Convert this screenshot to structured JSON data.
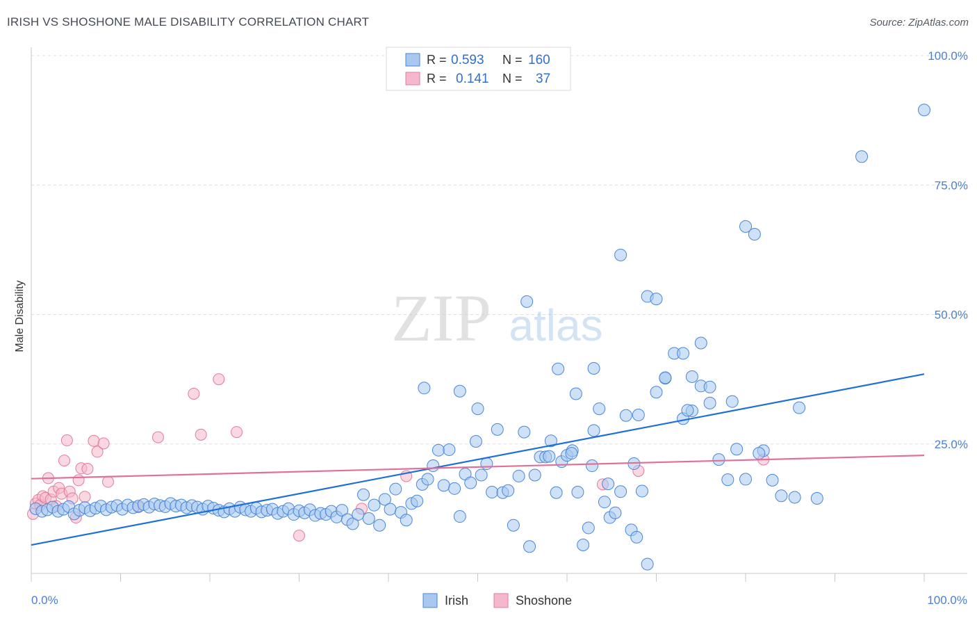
{
  "header": {
    "title": "IRISH VS SHOSHONE MALE DISABILITY CORRELATION CHART",
    "source": "Source: ZipAtlas.com"
  },
  "watermark": {
    "zip": "ZIP",
    "atlas": "atlas"
  },
  "legend_box": {
    "rows": [
      {
        "r_label": "R =",
        "r_value": "0.593",
        "n_label": "N =",
        "n_value": "160"
      },
      {
        "r_label": "R =",
        "r_value": "0.141",
        "n_label": "N =",
        "n_value": "37"
      }
    ]
  },
  "chart_data": {
    "type": "scatter",
    "title": "IRISH VS SHOSHONE MALE DISABILITY CORRELATION CHART",
    "xlabel": "",
    "ylabel": "Male Disability",
    "xlim": [
      0,
      100
    ],
    "ylim": [
      0,
      100
    ],
    "x_tick_labels": [
      "0.0%",
      "100.0%"
    ],
    "y_tick_labels": [
      "25.0%",
      "50.0%",
      "75.0%",
      "100.0%"
    ],
    "y_ticks": [
      25,
      50,
      75,
      100
    ],
    "grid": true,
    "legend_position": "bottom-center",
    "colors": {
      "irish_fill": "#a8c8f0",
      "irish_stroke": "#4a86d8",
      "irish_line": "#1e6fd9",
      "shoshone_fill": "#f5b8cb",
      "shoshone_stroke": "#e27a9c",
      "shoshone_line": "#e0709a",
      "axis_text": "#4a7fd4"
    },
    "series": [
      {
        "name": "Irish",
        "r": 0.593,
        "n": 160,
        "trend": {
          "x": [
            0,
            100
          ],
          "y": [
            5.5,
            38.5
          ]
        },
        "points": [
          [
            0.5,
            12.5
          ],
          [
            1.2,
            12.0
          ],
          [
            1.8,
            12.3
          ],
          [
            2.4,
            12.8
          ],
          [
            3.0,
            12.0
          ],
          [
            3.6,
            12.4
          ],
          [
            4.2,
            12.9
          ],
          [
            4.8,
            11.5
          ],
          [
            5.4,
            12.2
          ],
          [
            6.0,
            12.7
          ],
          [
            6.6,
            12.1
          ],
          [
            7.2,
            12.6
          ],
          [
            7.8,
            13.0
          ],
          [
            8.4,
            12.3
          ],
          [
            9.0,
            12.8
          ],
          [
            9.6,
            13.1
          ],
          [
            10.2,
            12.4
          ],
          [
            10.8,
            13.2
          ],
          [
            11.4,
            12.7
          ],
          [
            12.0,
            13.0
          ],
          [
            12.6,
            13.3
          ],
          [
            13.2,
            12.8
          ],
          [
            13.8,
            13.4
          ],
          [
            14.4,
            13.1
          ],
          [
            15.0,
            12.9
          ],
          [
            15.6,
            13.5
          ],
          [
            16.2,
            13.0
          ],
          [
            16.8,
            13.2
          ],
          [
            17.4,
            12.7
          ],
          [
            18.0,
            13.1
          ],
          [
            18.6,
            12.8
          ],
          [
            19.2,
            12.4
          ],
          [
            19.8,
            13.0
          ],
          [
            20.4,
            12.6
          ],
          [
            21.0,
            12.2
          ],
          [
            21.6,
            11.9
          ],
          [
            22.2,
            12.5
          ],
          [
            22.8,
            12.0
          ],
          [
            23.4,
            12.8
          ],
          [
            24.0,
            12.3
          ],
          [
            24.6,
            12.0
          ],
          [
            25.2,
            12.6
          ],
          [
            25.8,
            11.9
          ],
          [
            26.4,
            12.2
          ],
          [
            27.0,
            12.4
          ],
          [
            27.6,
            11.6
          ],
          [
            28.2,
            12.0
          ],
          [
            28.8,
            12.5
          ],
          [
            29.4,
            11.4
          ],
          [
            30.0,
            12.1
          ],
          [
            30.6,
            11.7
          ],
          [
            31.2,
            12.3
          ],
          [
            31.8,
            11.2
          ],
          [
            32.4,
            11.6
          ],
          [
            33.0,
            11.4
          ],
          [
            33.6,
            12.0
          ],
          [
            34.2,
            10.9
          ],
          [
            34.8,
            12.2
          ],
          [
            35.4,
            10.4
          ],
          [
            36.0,
            9.6
          ],
          [
            36.6,
            11.4
          ],
          [
            37.2,
            15.2
          ],
          [
            37.8,
            10.6
          ],
          [
            38.4,
            13.2
          ],
          [
            39.0,
            9.3
          ],
          [
            39.6,
            14.3
          ],
          [
            40.2,
            12.4
          ],
          [
            40.8,
            16.3
          ],
          [
            41.4,
            11.8
          ],
          [
            42.0,
            10.3
          ],
          [
            42.6,
            13.5
          ],
          [
            43.2,
            14.0
          ],
          [
            43.8,
            17.2
          ],
          [
            44.4,
            18.2
          ],
          [
            45.0,
            20.8
          ],
          [
            45.6,
            23.8
          ],
          [
            46.2,
            17.0
          ],
          [
            46.8,
            23.9
          ],
          [
            47.4,
            16.4
          ],
          [
            48.0,
            11.0
          ],
          [
            48.6,
            19.2
          ],
          [
            49.2,
            17.5
          ],
          [
            49.8,
            25.5
          ],
          [
            50.4,
            19.0
          ],
          [
            51.0,
            21.2
          ],
          [
            51.6,
            15.7
          ],
          [
            52.2,
            27.8
          ],
          [
            52.8,
            15.6
          ],
          [
            53.4,
            16.0
          ],
          [
            54.0,
            9.3
          ],
          [
            54.6,
            18.8
          ],
          [
            55.2,
            27.3
          ],
          [
            55.8,
            5.2
          ],
          [
            56.4,
            19.0
          ],
          [
            57.0,
            22.5
          ],
          [
            57.6,
            22.5
          ],
          [
            58.2,
            25.6
          ],
          [
            58.8,
            15.6
          ],
          [
            59.4,
            21.6
          ],
          [
            60.0,
            22.8
          ],
          [
            60.6,
            23.7
          ],
          [
            61.2,
            15.7
          ],
          [
            61.8,
            5.5
          ],
          [
            62.4,
            8.8
          ],
          [
            63.0,
            27.6
          ],
          [
            63.6,
            31.8
          ],
          [
            64.2,
            13.8
          ],
          [
            64.8,
            10.8
          ],
          [
            65.4,
            11.7
          ],
          [
            66.0,
            15.8
          ],
          [
            66.6,
            30.5
          ],
          [
            67.2,
            8.4
          ],
          [
            67.8,
            7.0
          ],
          [
            68.4,
            15.9
          ],
          [
            69.0,
            1.8
          ],
          [
            70.0,
            35.0
          ],
          [
            71.0,
            37.7
          ],
          [
            72.0,
            42.5
          ],
          [
            73.0,
            29.9
          ],
          [
            74.0,
            31.4
          ],
          [
            75.0,
            36.2
          ],
          [
            76.0,
            32.9
          ],
          [
            77.0,
            22.0
          ],
          [
            78.0,
            18.1
          ],
          [
            79.0,
            24.0
          ],
          [
            80.0,
            18.2
          ],
          [
            82.0,
            23.7
          ],
          [
            84.0,
            15.0
          ],
          [
            86.0,
            32.0
          ],
          [
            88.0,
            14.5
          ],
          [
            55.5,
            52.5
          ],
          [
            66.0,
            61.5
          ],
          [
            69.0,
            53.5
          ],
          [
            70.0,
            53.0
          ],
          [
            73.0,
            42.5
          ],
          [
            74.0,
            38.0
          ],
          [
            75.0,
            44.5
          ],
          [
            80.0,
            67.0
          ],
          [
            81.0,
            65.5
          ],
          [
            93.0,
            80.5
          ],
          [
            100.0,
            89.5
          ],
          [
            44.0,
            35.8
          ],
          [
            48.0,
            35.2
          ],
          [
            50.0,
            31.8
          ],
          [
            59.0,
            39.5
          ],
          [
            63.0,
            39.6
          ],
          [
            61.0,
            34.7
          ],
          [
            68.0,
            30.6
          ],
          [
            71.0,
            37.8
          ],
          [
            73.5,
            31.5
          ],
          [
            76.0,
            36.0
          ],
          [
            78.5,
            33.2
          ],
          [
            81.5,
            23.2
          ],
          [
            83.0,
            18.0
          ],
          [
            85.5,
            14.7
          ],
          [
            60.5,
            23.2
          ],
          [
            58.0,
            22.6
          ],
          [
            62.8,
            20.8
          ],
          [
            64.6,
            17.3
          ],
          [
            67.5,
            21.2
          ]
        ]
      },
      {
        "name": "Shoshone",
        "r": 0.141,
        "n": 37,
        "trend": {
          "x": [
            0,
            100
          ],
          "y": [
            18.3,
            22.8
          ]
        },
        "points": [
          [
            0.2,
            11.5
          ],
          [
            0.5,
            13.5
          ],
          [
            0.8,
            14.2
          ],
          [
            1.0,
            13.2
          ],
          [
            1.3,
            14.9
          ],
          [
            1.6,
            14.6
          ],
          [
            1.9,
            18.4
          ],
          [
            2.2,
            14.3
          ],
          [
            2.5,
            15.8
          ],
          [
            2.8,
            13.0
          ],
          [
            3.1,
            16.5
          ],
          [
            3.4,
            15.4
          ],
          [
            3.7,
            21.8
          ],
          [
            4.0,
            25.7
          ],
          [
            4.3,
            15.8
          ],
          [
            4.6,
            14.5
          ],
          [
            5.0,
            10.8
          ],
          [
            5.3,
            18.0
          ],
          [
            5.6,
            20.3
          ],
          [
            6.0,
            14.8
          ],
          [
            6.3,
            20.2
          ],
          [
            7.0,
            25.6
          ],
          [
            7.4,
            23.5
          ],
          [
            8.1,
            25.1
          ],
          [
            8.6,
            17.7
          ],
          [
            12.0,
            12.8
          ],
          [
            14.2,
            26.3
          ],
          [
            18.2,
            34.7
          ],
          [
            19.0,
            26.8
          ],
          [
            21.0,
            37.5
          ],
          [
            23.0,
            27.3
          ],
          [
            30.0,
            7.3
          ],
          [
            37.0,
            12.5
          ],
          [
            42.0,
            18.8
          ],
          [
            64.0,
            17.2
          ],
          [
            68.0,
            19.8
          ],
          [
            82.0,
            22.0
          ]
        ]
      }
    ]
  }
}
